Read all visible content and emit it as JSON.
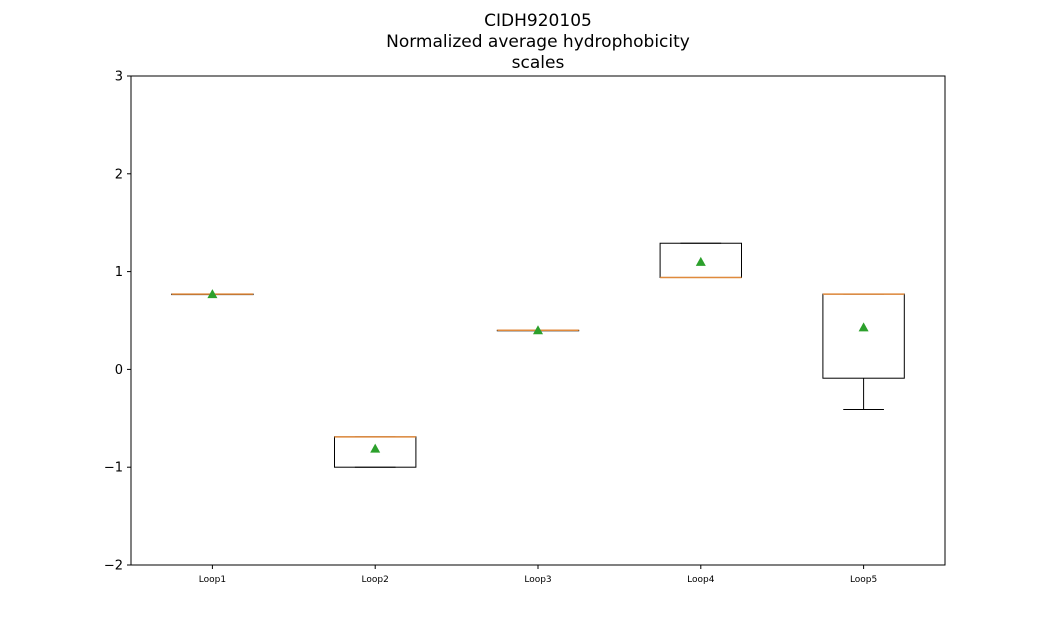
{
  "chart_data": {
    "type": "box",
    "title_lines": [
      "CIDH920105",
      "Normalized average hydrophobicity",
      "scales"
    ],
    "xlabel": "",
    "ylabel": "",
    "ylim": [
      -2,
      3
    ],
    "yticks": [
      -2,
      -1,
      0,
      1,
      2,
      3
    ],
    "ytick_labels": [
      "−2",
      "−1",
      "0",
      "1",
      "2",
      "3"
    ],
    "categories": [
      "Loop1",
      "Loop2",
      "Loop3",
      "Loop4",
      "Loop5"
    ],
    "boxes": [
      {
        "name": "Loop1",
        "whislo": 0.77,
        "q1": 0.77,
        "median": 0.77,
        "q3": 0.77,
        "whishi": 0.77,
        "mean": 0.77
      },
      {
        "name": "Loop2",
        "whislo": -1.0,
        "q1": -1.0,
        "median": -0.69,
        "q3": -0.69,
        "whishi": -0.69,
        "mean": -0.81
      },
      {
        "name": "Loop3",
        "whislo": 0.4,
        "q1": 0.4,
        "median": 0.4,
        "q3": 0.4,
        "whishi": 0.4,
        "mean": 0.4
      },
      {
        "name": "Loop4",
        "whislo": 0.94,
        "q1": 0.94,
        "median": 0.94,
        "q3": 1.29,
        "whishi": 1.29,
        "mean": 1.1
      },
      {
        "name": "Loop5",
        "whislo": -0.41,
        "q1": -0.09,
        "median": 0.77,
        "q3": 0.77,
        "whishi": 0.77,
        "mean": 0.43
      }
    ],
    "grid": false,
    "colors": {
      "box": "#000000",
      "median": "#e08a3c",
      "mean": "#2ca02c"
    }
  }
}
